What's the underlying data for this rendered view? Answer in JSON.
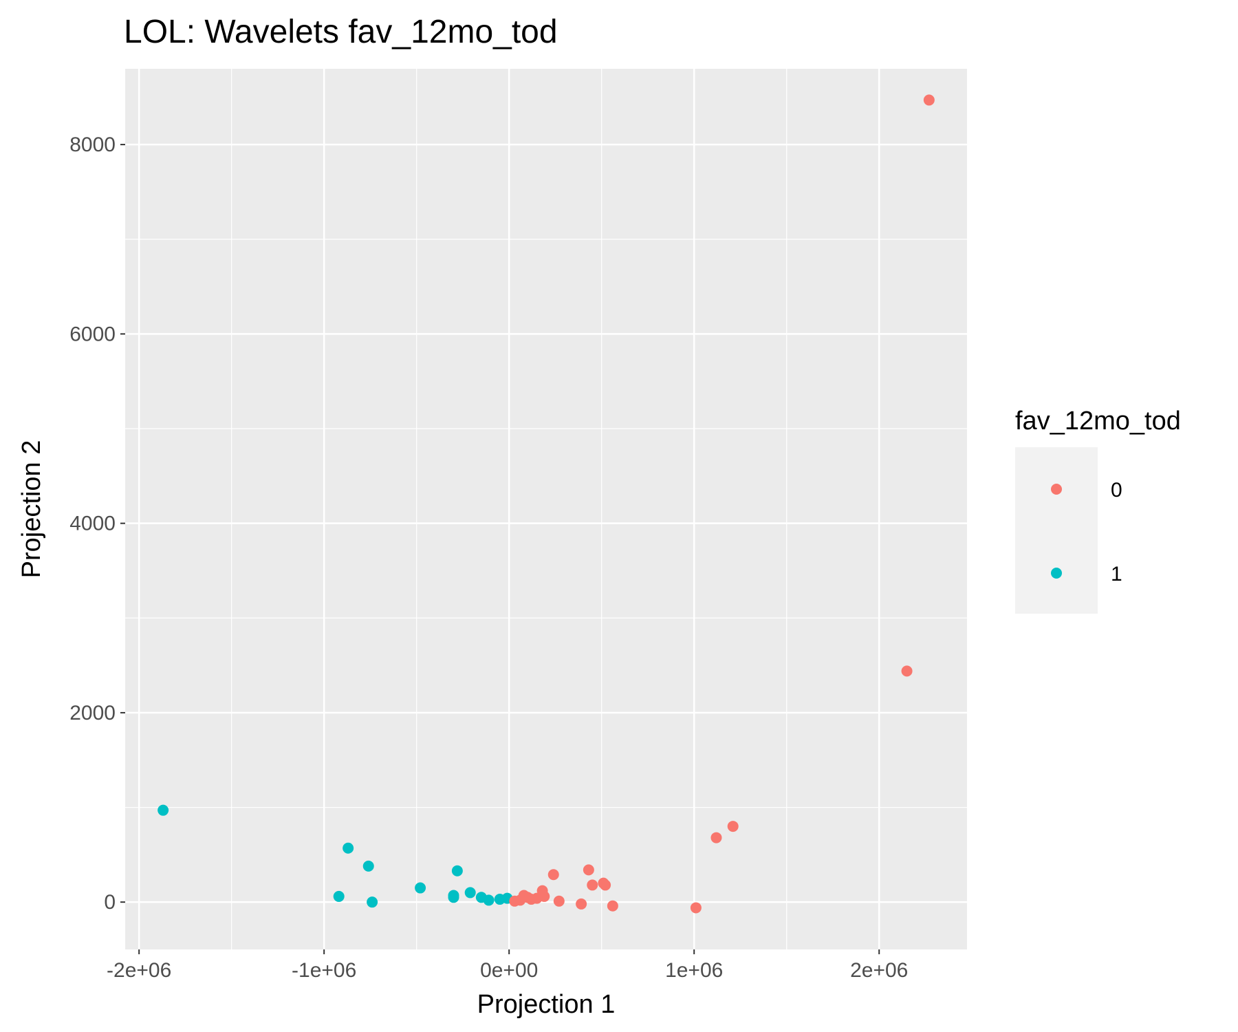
{
  "chart_data": {
    "type": "scatter",
    "title": "LOL: Wavelets fav_12mo_tod",
    "xlabel": "Projection 1",
    "ylabel": "Projection 2",
    "xlim": [
      -2075000,
      2475000
    ],
    "ylim": [
      -500,
      8800
    ],
    "x_ticks": [
      -2000000,
      -1000000,
      0,
      1000000,
      2000000
    ],
    "x_tick_labels": [
      "-2e+06",
      "-1e+06",
      "0e+00",
      "1e+06",
      "2e+06"
    ],
    "y_ticks": [
      0,
      2000,
      4000,
      6000,
      8000
    ],
    "y_tick_labels": [
      "0",
      "2000",
      "4000",
      "6000",
      "8000"
    ],
    "grid": true,
    "legend": {
      "title": "fav_12mo_tod",
      "placement": "right"
    },
    "series": [
      {
        "name": "0",
        "color": "#F8766D",
        "points": [
          [
            2270000,
            8470
          ],
          [
            2150000,
            2440
          ],
          [
            1210000,
            800
          ],
          [
            1120000,
            680
          ],
          [
            1010000,
            -60
          ],
          [
            560000,
            -40
          ],
          [
            520000,
            180
          ],
          [
            510000,
            200
          ],
          [
            450000,
            180
          ],
          [
            430000,
            340
          ],
          [
            390000,
            -20
          ],
          [
            270000,
            10
          ],
          [
            240000,
            290
          ],
          [
            190000,
            60
          ],
          [
            180000,
            120
          ],
          [
            150000,
            40
          ],
          [
            120000,
            30
          ],
          [
            100000,
            50
          ],
          [
            80000,
            70
          ],
          [
            60000,
            20
          ],
          [
            30000,
            10
          ]
        ]
      },
      {
        "name": "1",
        "color": "#00BFC4",
        "points": [
          [
            -1870000,
            970
          ],
          [
            -870000,
            570
          ],
          [
            -920000,
            60
          ],
          [
            -760000,
            380
          ],
          [
            -740000,
            0
          ],
          [
            -480000,
            150
          ],
          [
            -280000,
            330
          ],
          [
            -300000,
            70
          ],
          [
            -300000,
            50
          ],
          [
            -210000,
            100
          ],
          [
            -150000,
            50
          ],
          [
            -110000,
            20
          ],
          [
            -50000,
            30
          ],
          [
            -10000,
            40
          ]
        ]
      }
    ]
  }
}
